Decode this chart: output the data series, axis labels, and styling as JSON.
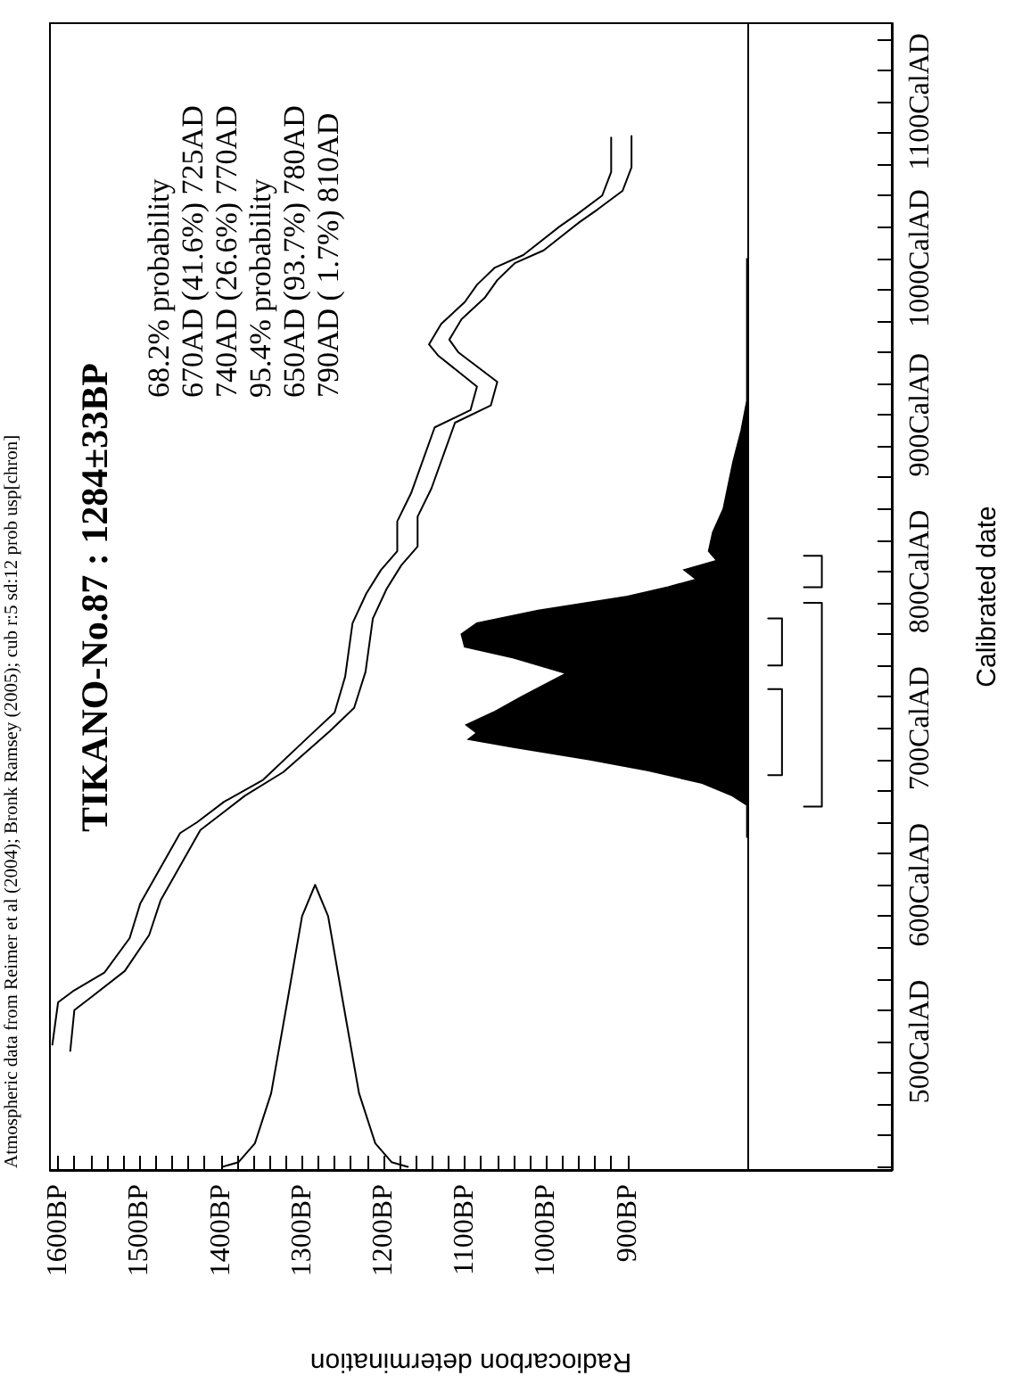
{
  "chart_data": {
    "type": "line",
    "title": "TIKANO-No.87 : 1284±33BP",
    "xlabel": "Radiocarbon determination",
    "ylabel": "Calibrated date",
    "annotations": [
      "Atmospheric data from Reimer et al (2004); Bronk Ramsey (2005); cub r:5 sd:12 prob usp[chron]",
      "68.2% probability",
      "670AD (41.6%) 725AD",
      "740AD (26.6%) 770AD",
      "95.4% probability",
      "650AD (93.7%) 780AD",
      "790AD ( 1.7%) 810AD"
    ],
    "ylim": [
      418,
      1150
    ],
    "yticks": [
      {
        "value": 420,
        "label": null
      },
      {
        "value": 440,
        "label": null
      },
      {
        "value": 460,
        "label": null
      },
      {
        "value": 480,
        "label": null
      },
      {
        "value": 500,
        "label": "500CalAD"
      },
      {
        "value": 520,
        "label": null
      },
      {
        "value": 540,
        "label": null
      },
      {
        "value": 560,
        "label": null
      },
      {
        "value": 580,
        "label": null
      },
      {
        "value": 600,
        "label": "600CalAD"
      },
      {
        "value": 620,
        "label": null
      },
      {
        "value": 640,
        "label": null
      },
      {
        "value": 660,
        "label": null
      },
      {
        "value": 680,
        "label": null
      },
      {
        "value": 700,
        "label": "700CalAD"
      },
      {
        "value": 720,
        "label": null
      },
      {
        "value": 740,
        "label": null
      },
      {
        "value": 760,
        "label": null
      },
      {
        "value": 780,
        "label": null
      },
      {
        "value": 800,
        "label": "800CalAD"
      },
      {
        "value": 820,
        "label": null
      },
      {
        "value": 840,
        "label": null
      },
      {
        "value": 860,
        "label": null
      },
      {
        "value": 880,
        "label": null
      },
      {
        "value": 900,
        "label": "900CalAD"
      },
      {
        "value": 920,
        "label": null
      },
      {
        "value": 940,
        "label": null
      },
      {
        "value": 960,
        "label": null
      },
      {
        "value": 980,
        "label": null
      },
      {
        "value": 1000,
        "label": "1000CalAD"
      },
      {
        "value": 1020,
        "label": null
      },
      {
        "value": 1040,
        "label": null
      },
      {
        "value": 1060,
        "label": null
      },
      {
        "value": 1080,
        "label": null
      },
      {
        "value": 1100,
        "label": "1100CalAD"
      },
      {
        "value": 1120,
        "label": null
      },
      {
        "value": 1140,
        "label": null
      }
    ],
    "xlim": [
      1610,
      575
    ],
    "xticks": [
      {
        "value": 900,
        "label": "900BP"
      },
      {
        "value": 920,
        "label": null
      },
      {
        "value": 940,
        "label": null
      },
      {
        "value": 960,
        "label": null
      },
      {
        "value": 980,
        "label": null
      },
      {
        "value": 1000,
        "label": "1000BP"
      },
      {
        "value": 1020,
        "label": null
      },
      {
        "value": 1040,
        "label": null
      },
      {
        "value": 1060,
        "label": null
      },
      {
        "value": 1080,
        "label": null
      },
      {
        "value": 1100,
        "label": "1100BP"
      },
      {
        "value": 1120,
        "label": null
      },
      {
        "value": 1140,
        "label": null
      },
      {
        "value": 1160,
        "label": null
      },
      {
        "value": 1180,
        "label": null
      },
      {
        "value": 1200,
        "label": "1200BP"
      },
      {
        "value": 1220,
        "label": null
      },
      {
        "value": 1240,
        "label": null
      },
      {
        "value": 1260,
        "label": null
      },
      {
        "value": 1280,
        "label": null
      },
      {
        "value": 1300,
        "label": "1300BP"
      },
      {
        "value": 1320,
        "label": null
      },
      {
        "value": 1340,
        "label": null
      },
      {
        "value": 1360,
        "label": null
      },
      {
        "value": 1380,
        "label": null
      },
      {
        "value": 1400,
        "label": "1400BP"
      },
      {
        "value": 1420,
        "label": null
      },
      {
        "value": 1440,
        "label": null
      },
      {
        "value": 1460,
        "label": null
      },
      {
        "value": 1480,
        "label": null
      },
      {
        "value": 1500,
        "label": "1500BP"
      },
      {
        "value": 1520,
        "label": null
      },
      {
        "value": 1540,
        "label": null
      },
      {
        "value": 1560,
        "label": null
      },
      {
        "value": 1580,
        "label": null
      },
      {
        "value": 1600,
        "label": "1600BP"
      }
    ],
    "series": [
      {
        "color": "#000000",
        "x": [
          1607,
          1600,
          1582,
          1543,
          1512,
          1499,
          1450,
          1429,
          1396,
          1348,
          1291,
          1260,
          1247,
          1238,
          1221,
          1203,
          1183,
          1183,
          1166,
          1137,
          1093,
          1085,
          1133,
          1144,
          1129,
          1100,
          1085,
          1063,
          1028,
          984,
          962,
          931,
          920,
          920
        ],
        "values": [
          498,
          525,
          532,
          544,
          566,
          588,
          633,
          640,
          653,
          667,
          695,
          710,
          733,
          767,
          786,
          801,
          813,
          832,
          850,
          892,
          903,
          918,
          938,
          945,
          958,
          972,
          983,
          994,
          1002,
          1020,
          1028,
          1040,
          1055,
          1077
        ]
      },
      {
        "color": "#000000",
        "x": [
          1585,
          1580,
          1560,
          1518,
          1488,
          1474,
          1425,
          1400,
          1370,
          1323,
          1266,
          1236,
          1222,
          1213,
          1196,
          1178,
          1158,
          1158,
          1141,
          1112,
          1068,
          1060,
          1108,
          1119,
          1104,
          1075,
          1060,
          1038,
          1003,
          959,
          937,
          906,
          895,
          895
        ],
        "values": [
          494,
          520,
          528,
          545,
          568,
          590,
          635,
          645,
          657,
          672,
          698,
          713,
          736,
          770,
          789,
          804,
          816,
          835,
          853,
          895,
          906,
          921,
          940,
          948,
          961,
          975,
          986,
          997,
          1005,
          1023,
          1031,
          1043,
          1058,
          1078
        ]
      },
      {
        "color": "#000000",
        "x": [
          1398,
          1378,
          1358,
          1338,
          1318,
          1300,
          1284,
          1268,
          1250,
          1230,
          1210,
          1190,
          1170
        ],
        "values": [
          420,
          423,
          435,
          467,
          526,
          580,
          600,
          580,
          526,
          467,
          435,
          423,
          420
        ]
      },
      {
        "type": "area",
        "color": "#000000",
        "x": [
          753,
          753,
          771,
          808,
          874,
          946,
          1040,
          1095,
          1085,
          1098,
          1065,
          1030,
          975,
          1040,
          1100,
          1104,
          1085,
          1010,
          900,
          850,
          815,
          830,
          790,
          800,
          795,
          782,
          776,
          770,
          760,
          753,
          753
        ],
        "values": [
          630,
          651,
          657,
          665,
          673,
          680,
          688,
          693,
          697,
          702,
          710,
          720,
          735,
          745,
          752,
          760,
          767,
          775,
          784,
          790,
          795,
          801,
          807,
          813,
          825,
          840,
          855,
          870,
          890,
          909,
          1000
        ]
      },
      {
        "color": "#000000",
        "x": [
          727,
          710,
          710,
          727
        ],
        "values": [
          670,
          670,
          725,
          725
        ]
      },
      {
        "color": "#000000",
        "x": [
          727,
          710,
          710,
          727
        ],
        "values": [
          740,
          740,
          770,
          770
        ]
      },
      {
        "color": "#000000",
        "x": [
          683,
          661,
          661,
          683
        ],
        "values": [
          650,
          650,
          780,
          780
        ]
      },
      {
        "color": "#000000",
        "x": [
          683,
          661,
          661,
          683
        ],
        "values": [
          790,
          790,
          810,
          810
        ]
      }
    ],
    "ref_lines": [
      {
        "axis": "x",
        "value": 753,
        "color": "#000000"
      }
    ],
    "marker": "none",
    "line_style": "solid",
    "grid": false
  }
}
